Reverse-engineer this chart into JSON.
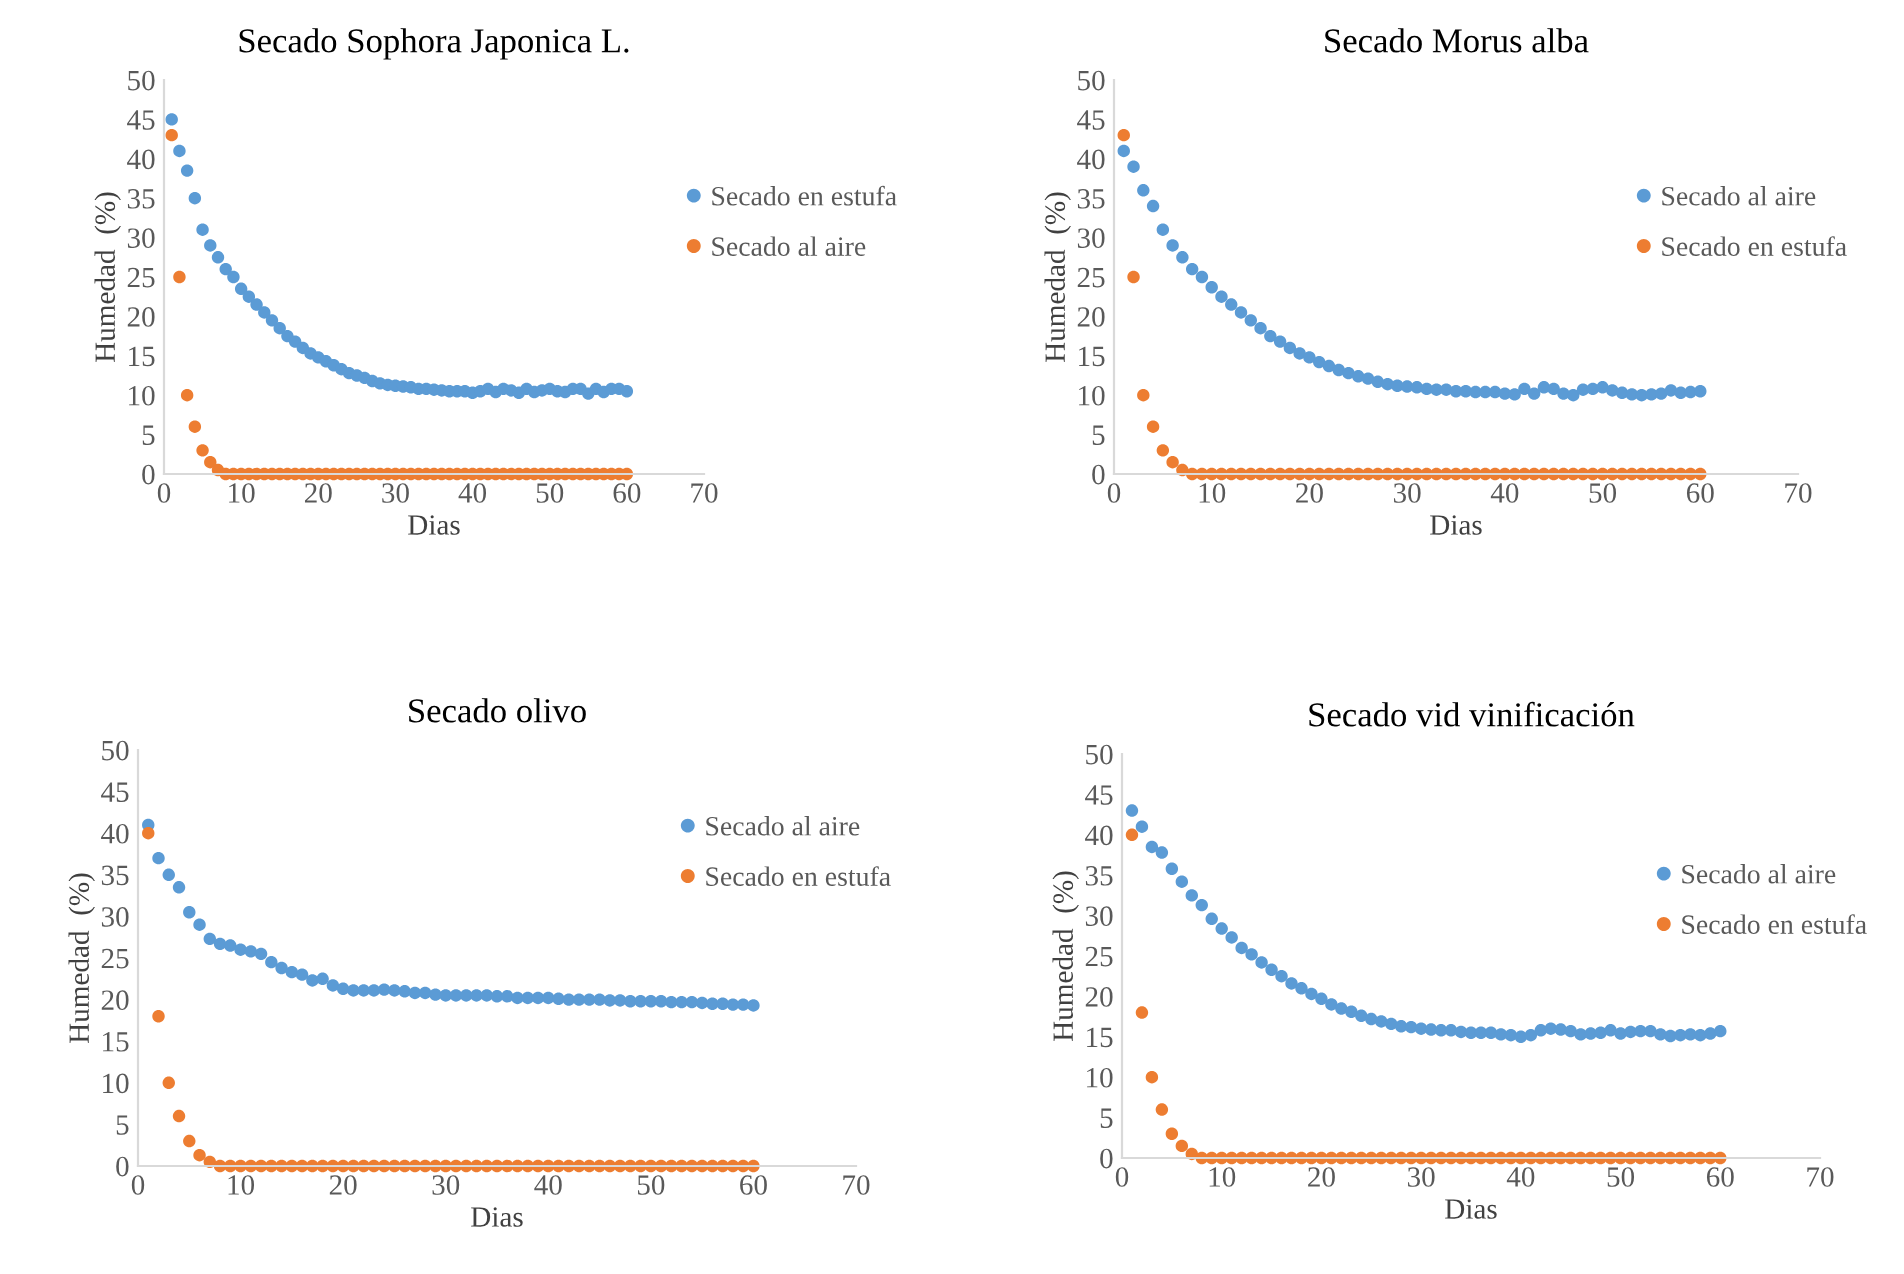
{
  "chart_data": [
    {
      "type": "scatter",
      "title": "Secado Sophora Japonica L.",
      "xlabel": "Dias",
      "ylabel": "Humedad  (%)",
      "xlim": [
        0,
        70
      ],
      "xticks": [
        0,
        10,
        20,
        30,
        40,
        50,
        60,
        70
      ],
      "ylim": [
        0,
        50
      ],
      "yticks": [
        0,
        5,
        10,
        15,
        20,
        25,
        30,
        35,
        40,
        45,
        50
      ],
      "grid": false,
      "legend": "right",
      "marker": "circle",
      "x": [
        1,
        2,
        3,
        4,
        5,
        6,
        7,
        8,
        9,
        10,
        11,
        12,
        13,
        14,
        15,
        16,
        17,
        18,
        19,
        20,
        21,
        22,
        23,
        24,
        25,
        26,
        27,
        28,
        29,
        30,
        31,
        32,
        33,
        34,
        35,
        36,
        37,
        38,
        39,
        40,
        41,
        42,
        43,
        44,
        45,
        46,
        47,
        48,
        49,
        50,
        51,
        52,
        53,
        54,
        55,
        56,
        57,
        58,
        59,
        60
      ],
      "series": [
        {
          "name": "Secado en estufa",
          "color": "#5b9bd5",
          "values": [
            45,
            41,
            38.5,
            35,
            31,
            29,
            27.5,
            26,
            25,
            23.5,
            22.5,
            21.5,
            20.5,
            19.5,
            18.5,
            17.5,
            16.8,
            16,
            15.3,
            14.8,
            14.3,
            13.8,
            13.3,
            12.8,
            12.5,
            12.2,
            11.8,
            11.5,
            11.3,
            11.2,
            11.1,
            11,
            10.8,
            10.8,
            10.7,
            10.6,
            10.5,
            10.5,
            10.5,
            10.3,
            10.5,
            10.8,
            10.4,
            10.8,
            10.6,
            10.3,
            10.8,
            10.4,
            10.6,
            10.8,
            10.5,
            10.4,
            10.8,
            10.8,
            10.2,
            10.8,
            10.4,
            10.8,
            10.8,
            10.5
          ]
        },
        {
          "name": "Secado al aire",
          "color": "#ed7d31",
          "values": [
            43,
            25,
            10,
            6,
            3,
            1.5,
            0.5,
            0,
            0,
            0,
            0,
            0,
            0,
            0,
            0,
            0,
            0,
            0,
            0,
            0,
            0,
            0,
            0,
            0,
            0,
            0,
            0,
            0,
            0,
            0,
            0,
            0,
            0,
            0,
            0,
            0,
            0,
            0,
            0,
            0,
            0,
            0,
            0,
            0,
            0,
            0,
            0,
            0,
            0,
            0,
            0,
            0,
            0,
            0,
            0,
            0,
            0,
            0,
            0,
            0
          ]
        }
      ]
    },
    {
      "type": "scatter",
      "title": "Secado Morus alba",
      "xlabel": "Dias",
      "ylabel": "Humedad  (%)",
      "xlim": [
        0,
        70
      ],
      "xticks": [
        0,
        10,
        20,
        30,
        40,
        50,
        60,
        70
      ],
      "ylim": [
        0,
        50
      ],
      "yticks": [
        0,
        5,
        10,
        15,
        20,
        25,
        30,
        35,
        40,
        45,
        50
      ],
      "grid": false,
      "legend": "right",
      "marker": "circle",
      "x": [
        1,
        2,
        3,
        4,
        5,
        6,
        7,
        8,
        9,
        10,
        11,
        12,
        13,
        14,
        15,
        16,
        17,
        18,
        19,
        20,
        21,
        22,
        23,
        24,
        25,
        26,
        27,
        28,
        29,
        30,
        31,
        32,
        33,
        34,
        35,
        36,
        37,
        38,
        39,
        40,
        41,
        42,
        43,
        44,
        45,
        46,
        47,
        48,
        49,
        50,
        51,
        52,
        53,
        54,
        55,
        56,
        57,
        58,
        59,
        60
      ],
      "series": [
        {
          "name": "Secado al aire",
          "color": "#5b9bd5",
          "values": [
            41,
            39,
            36,
            34,
            31,
            29,
            27.5,
            26,
            25,
            23.7,
            22.5,
            21.5,
            20.5,
            19.5,
            18.5,
            17.5,
            16.8,
            16,
            15.3,
            14.8,
            14.2,
            13.7,
            13.2,
            12.8,
            12.4,
            12.1,
            11.7,
            11.4,
            11.2,
            11.1,
            11,
            10.8,
            10.7,
            10.7,
            10.5,
            10.5,
            10.4,
            10.4,
            10.4,
            10.2,
            10.1,
            10.8,
            10.2,
            11,
            10.8,
            10.2,
            10,
            10.7,
            10.8,
            11,
            10.6,
            10.3,
            10.1,
            10,
            10.1,
            10.2,
            10.6,
            10.3,
            10.4,
            10.5
          ]
        },
        {
          "name": "Secado en estufa",
          "color": "#ed7d31",
          "values": [
            43,
            25,
            10,
            6,
            3,
            1.5,
            0.5,
            0,
            0,
            0,
            0,
            0,
            0,
            0,
            0,
            0,
            0,
            0,
            0,
            0,
            0,
            0,
            0,
            0,
            0,
            0,
            0,
            0,
            0,
            0,
            0,
            0,
            0,
            0,
            0,
            0,
            0,
            0,
            0,
            0,
            0,
            0,
            0,
            0,
            0,
            0,
            0,
            0,
            0,
            0,
            0,
            0,
            0,
            0,
            0,
            0,
            0,
            0,
            0,
            0
          ]
        }
      ]
    },
    {
      "type": "scatter",
      "title": "Secado olivo",
      "xlabel": "Dias",
      "ylabel": "Humedad  (%)",
      "xlim": [
        0,
        70
      ],
      "xticks": [
        0,
        10,
        20,
        30,
        40,
        50,
        60,
        70
      ],
      "ylim": [
        0,
        50
      ],
      "yticks": [
        0,
        5,
        10,
        15,
        20,
        25,
        30,
        35,
        40,
        45,
        50
      ],
      "grid": false,
      "legend": "right",
      "marker": "circle",
      "x": [
        1,
        2,
        3,
        4,
        5,
        6,
        7,
        8,
        9,
        10,
        11,
        12,
        13,
        14,
        15,
        16,
        17,
        18,
        19,
        20,
        21,
        22,
        23,
        24,
        25,
        26,
        27,
        28,
        29,
        30,
        31,
        32,
        33,
        34,
        35,
        36,
        37,
        38,
        39,
        40,
        41,
        42,
        43,
        44,
        45,
        46,
        47,
        48,
        49,
        50,
        51,
        52,
        53,
        54,
        55,
        56,
        57,
        58,
        59,
        60
      ],
      "series": [
        {
          "name": "Secado al aire",
          "color": "#5b9bd5",
          "values": [
            41,
            37,
            35,
            33.5,
            30.5,
            29,
            27.3,
            26.7,
            26.5,
            26,
            25.8,
            25.5,
            24.5,
            23.8,
            23.3,
            23,
            22.3,
            22.5,
            21.7,
            21.3,
            21.1,
            21.1,
            21.1,
            21.2,
            21.1,
            21,
            20.8,
            20.8,
            20.6,
            20.5,
            20.5,
            20.5,
            20.5,
            20.5,
            20.4,
            20.4,
            20.2,
            20.2,
            20.2,
            20.2,
            20.1,
            20,
            20,
            20,
            20,
            19.9,
            19.9,
            19.8,
            19.8,
            19.8,
            19.8,
            19.7,
            19.7,
            19.7,
            19.6,
            19.5,
            19.5,
            19.4,
            19.4,
            19.3
          ]
        },
        {
          "name": "Secado en estufa",
          "color": "#ed7d31",
          "values": [
            40,
            18,
            10,
            6,
            3,
            1.3,
            0.5,
            0,
            0,
            0,
            0,
            0,
            0,
            0,
            0,
            0,
            0,
            0,
            0,
            0,
            0,
            0,
            0,
            0,
            0,
            0,
            0,
            0,
            0,
            0,
            0,
            0,
            0,
            0,
            0,
            0,
            0,
            0,
            0,
            0,
            0,
            0,
            0,
            0,
            0,
            0,
            0,
            0,
            0,
            0,
            0,
            0,
            0,
            0,
            0,
            0,
            0,
            0,
            0,
            0
          ]
        }
      ]
    },
    {
      "type": "scatter",
      "title": "Secado vid vinificación",
      "xlabel": "Dias",
      "ylabel": "Humedad  (%)",
      "xlim": [
        0,
        70
      ],
      "xticks": [
        0,
        10,
        20,
        30,
        40,
        50,
        60,
        70
      ],
      "ylim": [
        0,
        50
      ],
      "yticks": [
        0,
        5,
        10,
        15,
        20,
        25,
        30,
        35,
        40,
        45,
        50
      ],
      "grid": false,
      "legend": "right",
      "marker": "circle",
      "x": [
        1,
        2,
        3,
        4,
        5,
        6,
        7,
        8,
        9,
        10,
        11,
        12,
        13,
        14,
        15,
        16,
        17,
        18,
        19,
        20,
        21,
        22,
        23,
        24,
        25,
        26,
        27,
        28,
        29,
        30,
        31,
        32,
        33,
        34,
        35,
        36,
        37,
        38,
        39,
        40,
        41,
        42,
        43,
        44,
        45,
        46,
        47,
        48,
        49,
        50,
        51,
        52,
        53,
        54,
        55,
        56,
        57,
        58,
        59,
        60
      ],
      "series": [
        {
          "name": "Secado al aire",
          "color": "#5b9bd5",
          "values": [
            43,
            41,
            38.5,
            37.8,
            35.8,
            34.2,
            32.5,
            31.3,
            29.6,
            28.4,
            27.3,
            26,
            25.2,
            24.2,
            23.3,
            22.5,
            21.6,
            21,
            20.3,
            19.7,
            19,
            18.5,
            18.1,
            17.6,
            17.2,
            16.9,
            16.6,
            16.3,
            16.2,
            16,
            15.9,
            15.8,
            15.8,
            15.6,
            15.5,
            15.5,
            15.5,
            15.3,
            15.2,
            15,
            15.2,
            15.8,
            16,
            15.9,
            15.7,
            15.3,
            15.4,
            15.5,
            15.8,
            15.4,
            15.6,
            15.7,
            15.7,
            15.3,
            15.1,
            15.2,
            15.3,
            15.2,
            15.4,
            15.7
          ]
        },
        {
          "name": "Secado en estufa",
          "color": "#ed7d31",
          "values": [
            40,
            18,
            10,
            6,
            3,
            1.5,
            0.5,
            0,
            0,
            0,
            0,
            0,
            0,
            0,
            0,
            0,
            0,
            0,
            0,
            0,
            0,
            0,
            0,
            0,
            0,
            0,
            0,
            0,
            0,
            0,
            0,
            0,
            0,
            0,
            0,
            0,
            0,
            0,
            0,
            0,
            0,
            0,
            0,
            0,
            0,
            0,
            0,
            0,
            0,
            0,
            0,
            0,
            0,
            0,
            0,
            0,
            0,
            0,
            0,
            0
          ]
        }
      ]
    }
  ]
}
